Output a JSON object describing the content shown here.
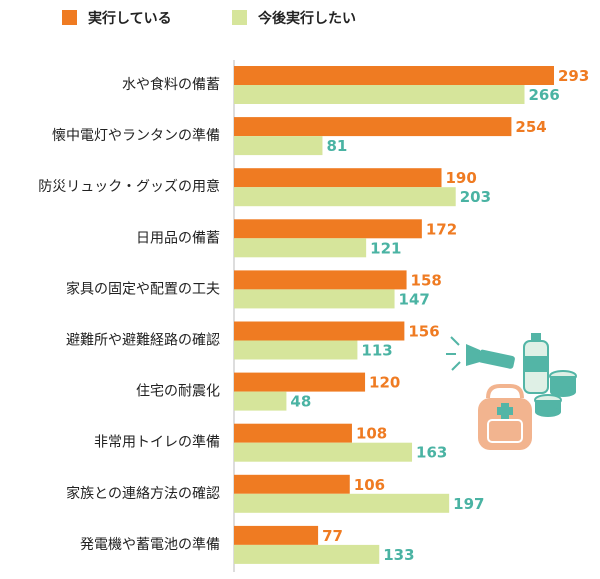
{
  "chart_data": {
    "type": "bar",
    "orientation": "horizontal",
    "categories": [
      "水や食料の備蓄",
      "懐中電灯やランタンの準備",
      "防災リュック・グッズの用意",
      "日用品の備蓄",
      "家具の固定や配置の工夫",
      "避難所や避難経路の確認",
      "住宅の耐震化",
      "非常用トイレの準備",
      "家族との連絡方法の確認",
      "発電機や蓄電池の準備"
    ],
    "series": [
      {
        "name": "実行している",
        "values": [
          293,
          254,
          190,
          172,
          158,
          156,
          120,
          108,
          106,
          77
        ],
        "color": "#ef7b22",
        "label_color": "#ef7b22"
      },
      {
        "name": "今後実行したい",
        "values": [
          266,
          81,
          203,
          121,
          147,
          113,
          48,
          163,
          197,
          133
        ],
        "color": "#d6e59b",
        "label_color": "#4ab3a3"
      }
    ],
    "legend_position": "top-left",
    "grid": false,
    "xlim": [
      0,
      300
    ],
    "xlabel": "",
    "ylabel": ""
  },
  "illustration": {
    "icons": [
      "flashlight-icon",
      "water-bottle-icon",
      "canned-food-icon",
      "backpack-icon"
    ],
    "colors": {
      "teal": "#53b5a6",
      "peach": "#f2b48f",
      "light": "#dff0e6"
    }
  }
}
